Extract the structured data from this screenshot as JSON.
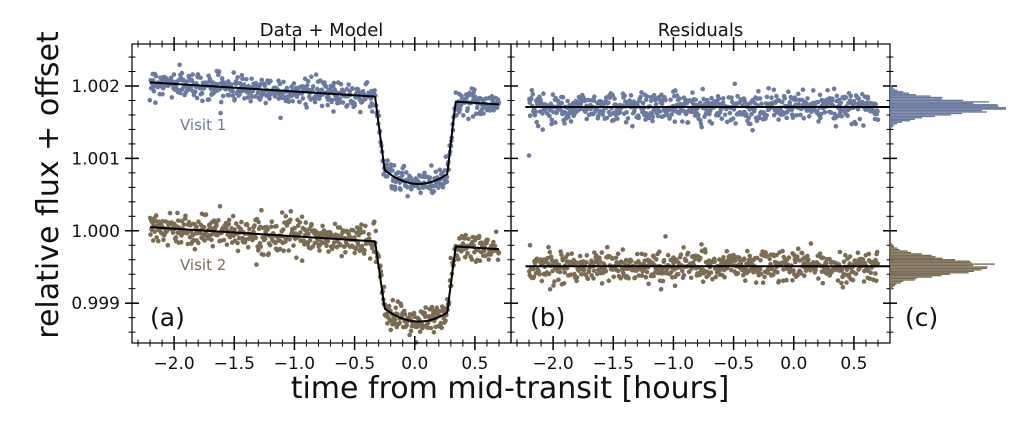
{
  "figure": {
    "ylabel": "relative flux + offset",
    "xlabel": "time from mid-transit [hours]",
    "colors": {
      "visit1": "#6b7a9e",
      "visit2": "#7b6d55",
      "model": "#000000"
    }
  },
  "chart_data": [
    {
      "id": "a",
      "type": "scatter",
      "panel_label": "(a)",
      "title": "Data + Model",
      "xlim": [
        -2.35,
        0.8
      ],
      "ylim": [
        0.99845,
        1.00258
      ],
      "xticks": [
        -2.0,
        -1.5,
        -1.0,
        -0.5,
        0.0,
        0.5
      ],
      "xtick_labels": [
        "−2.0",
        "−1.5",
        "−1.0",
        "−0.5",
        "0.0",
        "0.5"
      ],
      "yticks": [
        0.999,
        1.0,
        1.001,
        1.002
      ],
      "ytick_labels": [
        "0.999",
        "1.000",
        "1.001",
        "1.002"
      ],
      "x_range": [
        -2.2,
        0.7
      ],
      "transit": {
        "ingress_start": -0.33,
        "ingress_end": -0.25,
        "egress_start": 0.27,
        "egress_end": 0.34
      },
      "series": [
        {
          "name": "Visit 1",
          "baseline_start": 1.00205,
          "baseline_slope_per_hr": -0.000105,
          "transit_depth": 0.00117,
          "scatter_sd": 9e-05
        },
        {
          "name": "Visit 2",
          "baseline_start": 1.00005,
          "baseline_slope_per_hr": -0.000105,
          "transit_depth": 0.00107,
          "scatter_sd": 0.00011
        }
      ]
    },
    {
      "id": "b",
      "type": "scatter",
      "panel_label": "(b)",
      "title": "Residuals",
      "xlim": [
        -2.35,
        0.8
      ],
      "xticks": [
        -2.0,
        -1.5,
        -1.0,
        -0.5,
        0.0,
        0.5
      ],
      "xtick_labels": [
        "−2.0",
        "−1.5",
        "−1.0",
        "−0.5",
        "0.0",
        "0.5"
      ],
      "x_range": [
        -2.2,
        0.7
      ],
      "series": [
        {
          "name": "Visit 1",
          "zero_level": 1.00171,
          "scatter_sd": 0.0001,
          "outlier": {
            "x": -2.2,
            "y": 1.00104
          }
        },
        {
          "name": "Visit 2",
          "zero_level": 0.99951,
          "scatter_sd": 0.00011
        }
      ]
    },
    {
      "id": "c",
      "type": "bar",
      "panel_label": "(c)",
      "orientation": "horizontal",
      "series": [
        {
          "name": "Visit 1",
          "center": 1.00171,
          "sd": 0.0001,
          "peak_fraction": 0.92
        },
        {
          "name": "Visit 2",
          "center": 0.99951,
          "sd": 0.00011,
          "peak_fraction": 0.8
        }
      ]
    }
  ]
}
